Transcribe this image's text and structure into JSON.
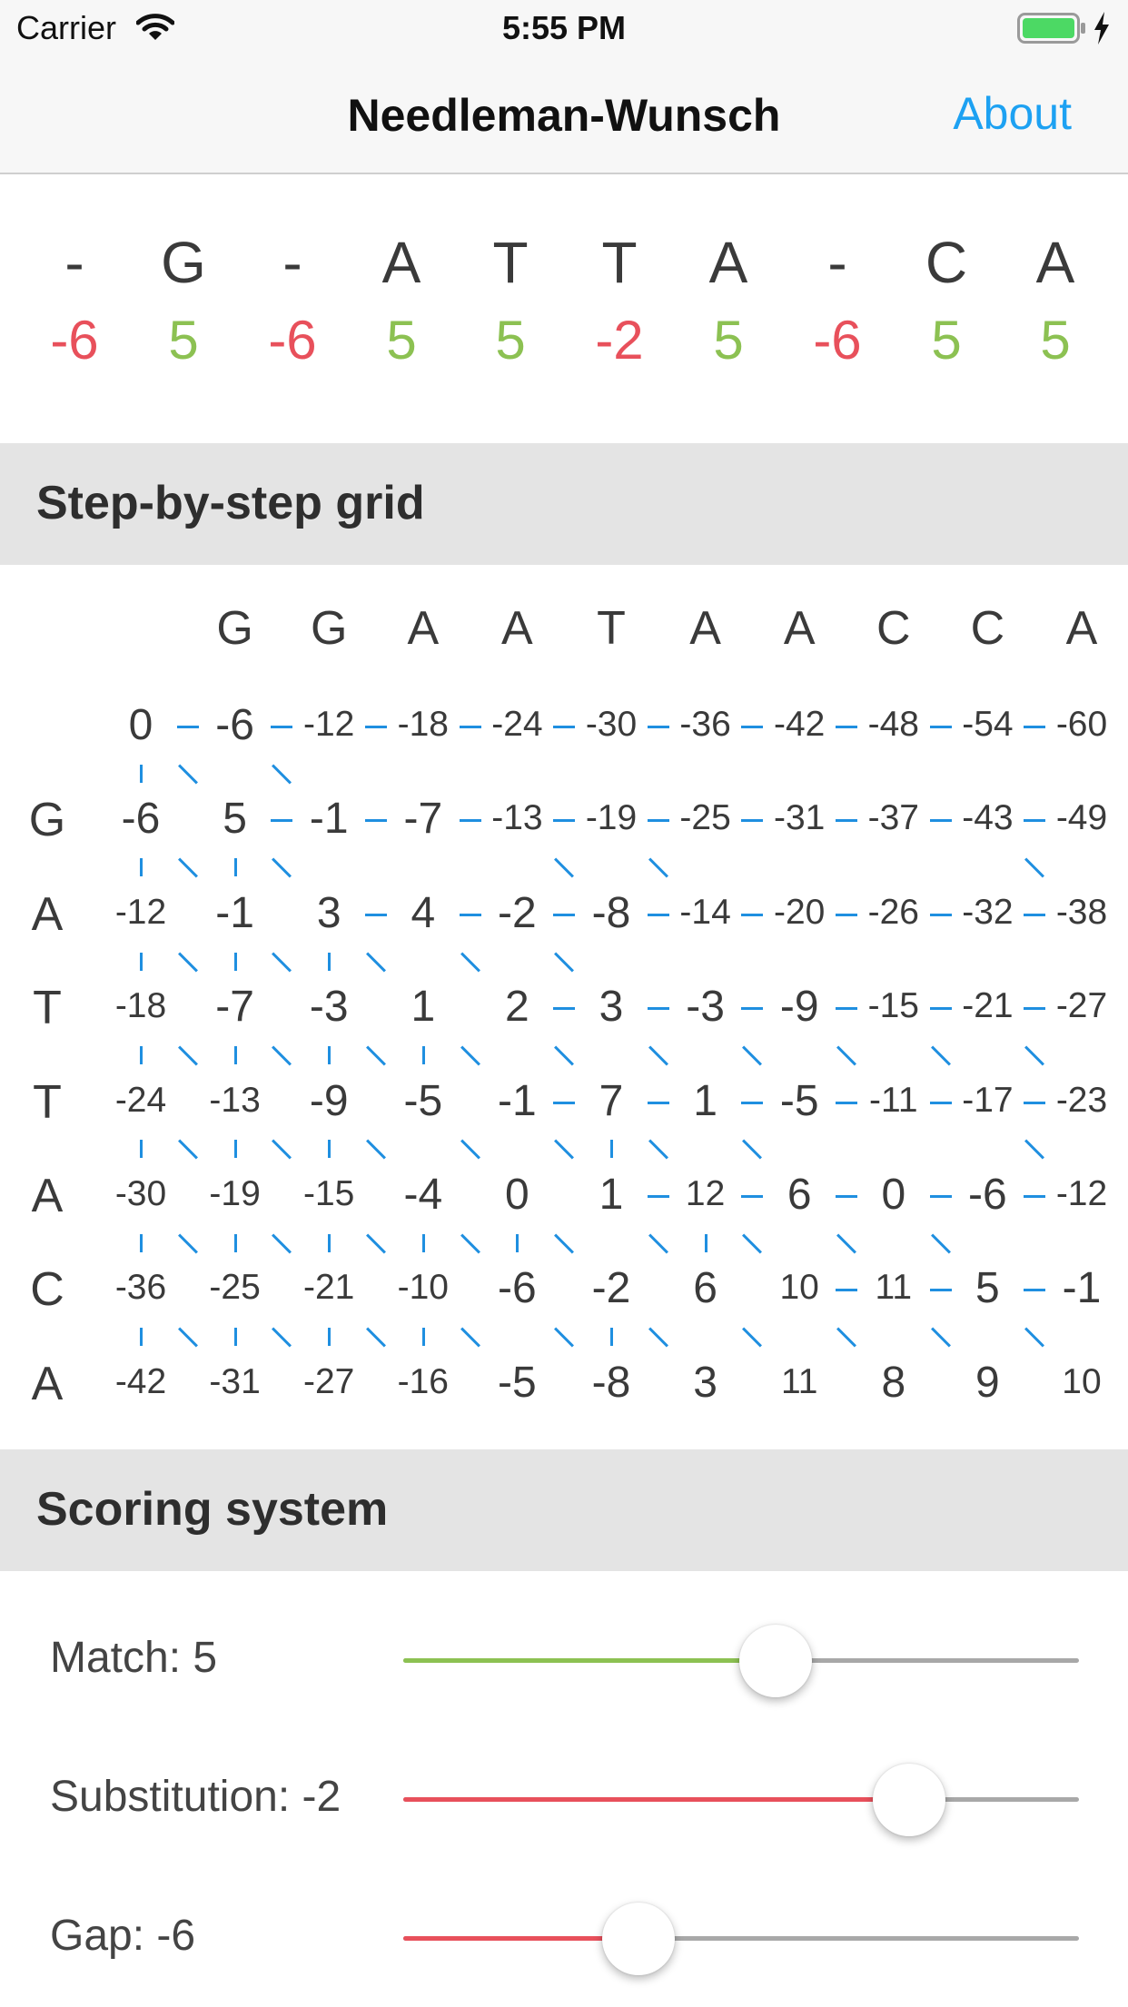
{
  "status_bar": {
    "carrier": "Carrier",
    "time": "5:55 PM"
  },
  "nav": {
    "title": "Needleman-Wunsch",
    "about_label": "About"
  },
  "alignment": {
    "chars": [
      "-",
      "G",
      "-",
      "A",
      "T",
      "T",
      "A",
      "-",
      "C",
      "A"
    ],
    "scores": [
      "-6",
      "5",
      "-6",
      "5",
      "5",
      "-2",
      "5",
      "-6",
      "5",
      "5"
    ],
    "colors": {
      "match": "#8cc152",
      "mismatch": "#e8505b"
    }
  },
  "grid_section": {
    "title": "Step-by-step grid",
    "top_sequence": [
      "G",
      "G",
      "A",
      "A",
      "T",
      "A",
      "A",
      "C",
      "C",
      "A"
    ],
    "side_sequence": [
      "G",
      "A",
      "T",
      "T",
      "A",
      "C",
      "A"
    ],
    "matrix": [
      [
        "0",
        "-6",
        "-12",
        "-18",
        "-24",
        "-30",
        "-36",
        "-42",
        "-48",
        "-54",
        "-60"
      ],
      [
        "-6",
        "5",
        "-1",
        "-7",
        "-13",
        "-19",
        "-25",
        "-31",
        "-37",
        "-43",
        "-49"
      ],
      [
        "-12",
        "-1",
        "3",
        "4",
        "-2",
        "-8",
        "-14",
        "-20",
        "-26",
        "-32",
        "-38"
      ],
      [
        "-18",
        "-7",
        "-3",
        "1",
        "2",
        "3",
        "-3",
        "-9",
        "-15",
        "-21",
        "-27"
      ],
      [
        "-24",
        "-13",
        "-9",
        "-5",
        "-1",
        "7",
        "1",
        "-5",
        "-11",
        "-17",
        "-23"
      ],
      [
        "-30",
        "-19",
        "-15",
        "-4",
        "0",
        "1",
        "12",
        "6",
        "0",
        "-6",
        "-12"
      ],
      [
        "-36",
        "-25",
        "-21",
        "-10",
        "-6",
        "-2",
        "6",
        "10",
        "11",
        "5",
        "-1"
      ],
      [
        "-42",
        "-31",
        "-27",
        "-16",
        "-5",
        "-8",
        "3",
        "11",
        "8",
        "9",
        "10"
      ]
    ],
    "horizontal_arrows": [
      [
        1,
        1,
        1,
        1,
        1,
        1,
        1,
        1,
        1,
        1
      ],
      [
        0,
        1,
        1,
        1,
        1,
        1,
        1,
        1,
        1,
        1
      ],
      [
        0,
        0,
        1,
        1,
        1,
        1,
        1,
        1,
        1,
        1
      ],
      [
        0,
        0,
        0,
        0,
        1,
        1,
        1,
        1,
        1,
        1
      ],
      [
        0,
        0,
        0,
        0,
        1,
        1,
        1,
        1,
        1,
        1
      ],
      [
        0,
        0,
        0,
        0,
        0,
        1,
        1,
        1,
        1,
        1
      ],
      [
        0,
        0,
        0,
        0,
        0,
        0,
        0,
        1,
        1,
        1
      ],
      [
        0,
        0,
        0,
        0,
        0,
        0,
        0,
        0,
        0,
        0
      ]
    ],
    "vertical_arrows": [
      [
        1,
        0,
        0,
        0,
        0,
        0,
        0,
        0,
        0,
        0,
        0
      ],
      [
        1,
        1,
        0,
        0,
        0,
        0,
        0,
        0,
        0,
        0,
        0
      ],
      [
        1,
        1,
        1,
        0,
        0,
        0,
        0,
        0,
        0,
        0,
        0
      ],
      [
        1,
        1,
        1,
        1,
        0,
        0,
        0,
        0,
        0,
        0,
        0
      ],
      [
        1,
        1,
        1,
        0,
        0,
        1,
        0,
        0,
        0,
        0,
        0
      ],
      [
        1,
        1,
        1,
        1,
        1,
        0,
        1,
        0,
        0,
        0,
        0
      ],
      [
        1,
        1,
        1,
        1,
        0,
        1,
        0,
        0,
        0,
        0,
        0
      ]
    ],
    "diagonal_arrows": [
      [
        1,
        1,
        0,
        0,
        0,
        0,
        0,
        0,
        0,
        0
      ],
      [
        1,
        1,
        0,
        0,
        1,
        1,
        0,
        0,
        0,
        1
      ],
      [
        1,
        1,
        1,
        1,
        1,
        0,
        0,
        0,
        0,
        0
      ],
      [
        1,
        1,
        1,
        1,
        1,
        1,
        1,
        1,
        1,
        1
      ],
      [
        1,
        1,
        1,
        1,
        1,
        1,
        1,
        0,
        0,
        1
      ],
      [
        1,
        1,
        1,
        1,
        1,
        1,
        1,
        1,
        1,
        0
      ],
      [
        1,
        1,
        1,
        1,
        1,
        1,
        1,
        1,
        1,
        1
      ]
    ],
    "arrow_color": "#1f8fe0"
  },
  "scoring_section": {
    "title": "Scoring system",
    "sliders": [
      {
        "label": "Match: 5",
        "fraction": 0.551,
        "fill_color": "#8cc152"
      },
      {
        "label": "Substitution: -2",
        "fraction": 0.749,
        "fill_color": "#e8505b"
      },
      {
        "label": "Gap: -6",
        "fraction": 0.348,
        "fill_color": "#e8505b"
      }
    ]
  }
}
